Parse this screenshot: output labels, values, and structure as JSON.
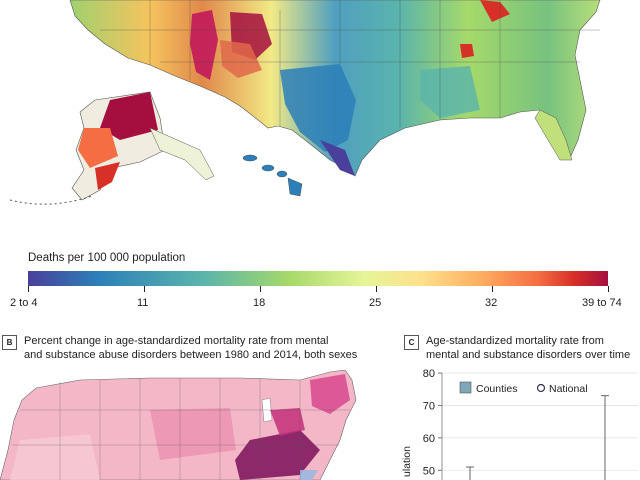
{
  "legend": {
    "title": "Deaths per 100 000 population",
    "ticks": [
      "2 to 4",
      "11",
      "18",
      "25",
      "32",
      "39 to 74"
    ],
    "colors": [
      "#4a3f9a",
      "#2c7fb8",
      "#5ab4ac",
      "#a6d96a",
      "#fee08b",
      "#fdae61",
      "#f46d43",
      "#d73027",
      "#a50f3f"
    ]
  },
  "panel_b": {
    "letter": "B",
    "title_line1": "Percent change in age-standardized mortality rate from mental",
    "title_line2": "and substance abuse disorders between 1980 and 2014, both sexes"
  },
  "panel_c": {
    "letter": "C",
    "title_line1": "Age-standardized mortality rate from",
    "title_line2": "mental and substance disorders over time",
    "legend_counties": "Counties",
    "legend_national": "National",
    "ylabel_fragment": "ulation",
    "chart_data": {
      "type": "box",
      "title": "",
      "yticks": [
        50,
        60,
        70,
        80
      ],
      "ylim": [
        47,
        80
      ],
      "series": [
        {
          "name": "Counties",
          "color": "#7fa7b8"
        },
        {
          "name": "National",
          "color": "#ffffff"
        }
      ],
      "whisker_tops": [
        51,
        73
      ]
    }
  }
}
